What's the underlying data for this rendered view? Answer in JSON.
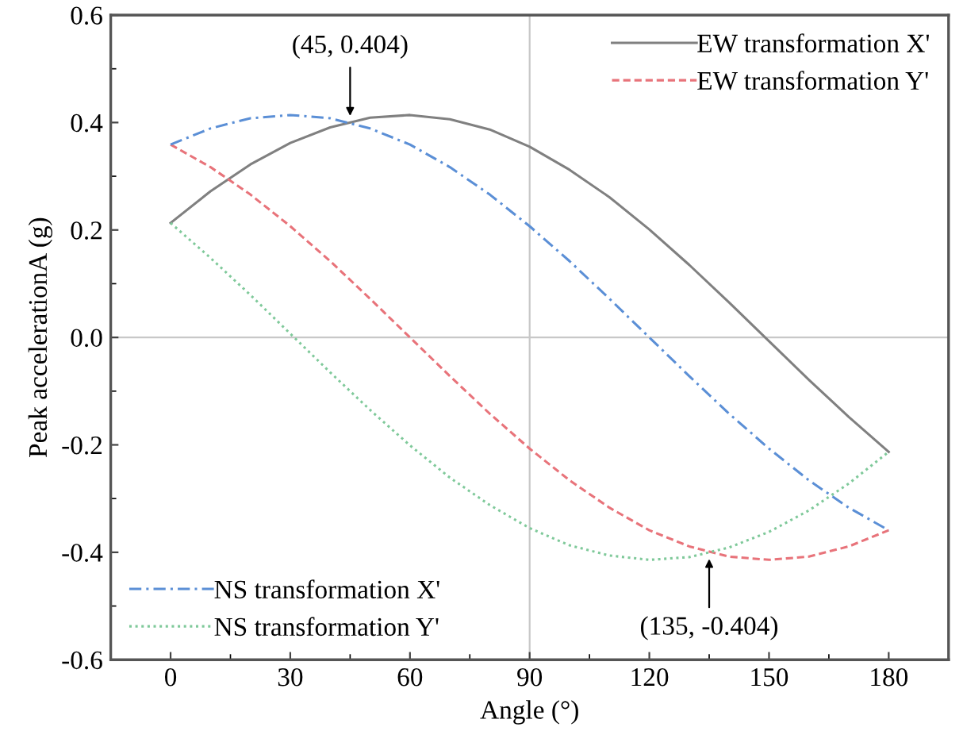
{
  "chart_data": {
    "type": "line",
    "xlabel": "Angle (°)",
    "ylabel": "Peak accelerationA (g)",
    "x": [
      0,
      10,
      20,
      30,
      40,
      50,
      60,
      70,
      80,
      90,
      100,
      110,
      120,
      130,
      140,
      150,
      160,
      170,
      180
    ],
    "series": [
      {
        "name": "EW transformation X'",
        "color": "#808080",
        "line_style": "solid",
        "values": [
          0.213,
          0.272,
          0.322,
          0.362,
          0.391,
          0.409,
          0.414,
          0.406,
          0.387,
          0.355,
          0.312,
          0.261,
          0.201,
          0.135,
          0.065,
          -0.007,
          -0.079,
          -0.148,
          -0.213
        ]
      },
      {
        "name": "EW transformation Y'",
        "color": "#e8737a",
        "line_style": "dashed",
        "values": [
          0.359,
          0.317,
          0.266,
          0.207,
          0.142,
          0.072,
          0.0,
          -0.072,
          -0.142,
          -0.207,
          -0.266,
          -0.317,
          -0.359,
          -0.389,
          -0.408,
          -0.414,
          -0.408,
          -0.389,
          -0.359
        ]
      },
      {
        "name": "NS transformation X'",
        "color": "#5b8fd6",
        "line_style": "dashdot",
        "values": [
          0.359,
          0.389,
          0.408,
          0.414,
          0.408,
          0.389,
          0.359,
          0.317,
          0.266,
          0.207,
          0.142,
          0.072,
          0.0,
          -0.072,
          -0.142,
          -0.207,
          -0.266,
          -0.317,
          -0.359
        ]
      },
      {
        "name": "NS transformation Y'",
        "color": "#7fc99a",
        "line_style": "dotted",
        "values": [
          0.213,
          0.148,
          0.079,
          0.007,
          -0.065,
          -0.135,
          -0.201,
          -0.261,
          -0.312,
          -0.355,
          -0.387,
          -0.406,
          -0.414,
          -0.409,
          -0.391,
          -0.362,
          -0.322,
          -0.272,
          -0.213
        ]
      }
    ],
    "xlim": [
      -15,
      195
    ],
    "xticks": [
      0,
      30,
      60,
      90,
      120,
      150,
      180
    ],
    "ylim": [
      -0.6,
      0.6
    ],
    "yticks": [
      {
        "value": -0.6,
        "label": "-0.6"
      },
      {
        "value": -0.4,
        "label": "-0.4"
      },
      {
        "value": -0.2,
        "label": "-0.2"
      },
      {
        "value": 0.0,
        "label": "0.0"
      },
      {
        "value": 0.2,
        "label": "0.2"
      },
      {
        "value": 0.4,
        "label": "0.4"
      },
      {
        "value": 0.6,
        "label": "0.6"
      }
    ],
    "ref_lines": [
      {
        "axis": "x",
        "value": 90,
        "color": "#c8c8c8"
      },
      {
        "axis": "y",
        "value": 0,
        "color": "#c8c8c8"
      }
    ],
    "annotations": [
      {
        "text": "(45, 0.404)",
        "x": 45,
        "y": 0.404
      },
      {
        "text": "(135, -0.404)",
        "x": 135,
        "y": -0.404
      }
    ],
    "legend": "top right",
    "grid": false,
    "marker": "none"
  }
}
